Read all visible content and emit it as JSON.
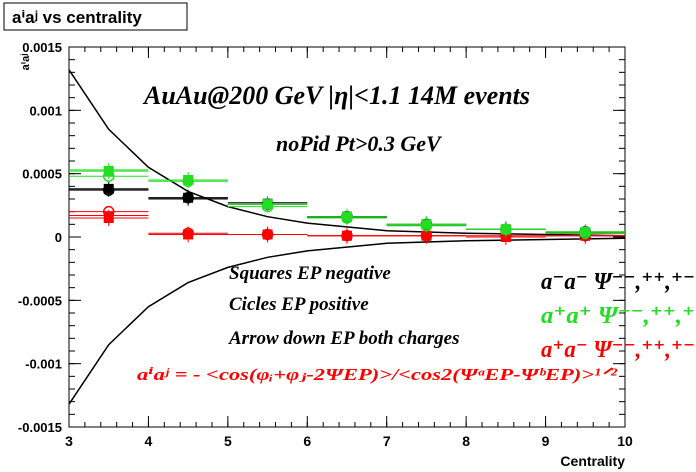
{
  "title": "aⁱaʲ vs centrality",
  "chart_data": {
    "type": "scatter",
    "title": "aⁱaʲ vs centrality",
    "xlabel": "Centrality",
    "ylabel": "aⁱaʲ",
    "xlim": [
      3,
      10
    ],
    "ylim": [
      -0.0015,
      0.0015
    ],
    "x_ticks": [
      3,
      4,
      5,
      6,
      7,
      8,
      9,
      10
    ],
    "x_tick_labels": [
      "3",
      "4",
      "5",
      "6",
      "7",
      "8",
      "9",
      "10"
    ],
    "y_ticks": [
      -0.0015,
      -0.001,
      -0.0005,
      0,
      0.0005,
      0.001,
      0.0015
    ],
    "y_tick_labels": [
      "-0.0015",
      "-0.001",
      "-0.0005",
      "0",
      "0.0005",
      "0.001",
      "0.0015"
    ],
    "grid": false,
    "annotations": {
      "header1": "AuAu@200 GeV |η|<1.1 14M events",
      "header2": "noPid Pt>0.3 GeV",
      "note_squares": "Squares EP negative",
      "note_circles": "Cicles EP positive",
      "note_arrows": "Arrow down EP both charges",
      "formula": "aⁱaʲ = - <cos(φᵢ+φⱼ-2ΨEP)>/<cos2(ΨᵃEP-ΨᵇEP)>¹ᐟ²"
    },
    "legend": {
      "position": "right",
      "entries": [
        {
          "label": "a⁻a⁻  Ψ⁻⁻,⁺⁺,⁺⁻",
          "color": "#000000"
        },
        {
          "label": "a⁺a⁺  Ψ⁻⁻,⁺⁺,⁺",
          "color": "#22dd22"
        },
        {
          "label": "a⁺a⁻  Ψ⁻⁻,⁺⁺,⁺⁻",
          "color": "#ff0000"
        }
      ]
    },
    "series": [
      {
        "name": "a⁻a⁻",
        "color": "#000000",
        "x": [
          3.5,
          4.5,
          5.5,
          6.5,
          7.5,
          8.5,
          9.5
        ],
        "y": [
          0.00038,
          0.0003,
          0.00027,
          0.00016,
          9e-05,
          6e-05,
          3e-05
        ],
        "squares_y": [
          0.00038,
          0.00031,
          0.00026,
          0.00016,
          0.0001,
          6e-05,
          3e-05
        ],
        "circles_y": [
          0.00037,
          0.00031,
          0.00026,
          0.00016,
          0.0001,
          6e-05,
          4e-05
        ]
      },
      {
        "name": "a⁺a⁺",
        "color": "#22dd22",
        "x": [
          3.5,
          4.5,
          5.5,
          6.5,
          7.5,
          8.5,
          9.5
        ],
        "y": [
          0.00053,
          0.00045,
          0.00026,
          0.00015,
          0.0001,
          6e-05,
          3e-05
        ],
        "squares_y": [
          0.00052,
          0.00045,
          0.00026,
          0.00016,
          0.0001,
          6e-05,
          4e-05
        ],
        "circles_y": [
          0.00048,
          0.00044,
          0.00024,
          0.00015,
          9e-05,
          6e-05,
          3e-05
        ]
      },
      {
        "name": "a⁺a⁻",
        "color": "#ff0000",
        "x": [
          3.5,
          4.5,
          5.5,
          6.5,
          7.5,
          8.5,
          9.5
        ],
        "y": [
          0.00017,
          2e-05,
          2e-05,
          1e-05,
          1e-05,
          0.0,
          1e-05
        ],
        "squares_y": [
          0.00015,
          2e-05,
          2e-05,
          1e-05,
          1e-05,
          0.0,
          1e-05
        ],
        "circles_y": [
          0.0002,
          3e-05,
          2e-05,
          1e-05,
          1e-05,
          1e-05,
          1e-05
        ]
      }
    ],
    "curves": {
      "upper": {
        "x": [
          3.0,
          3.5,
          4.0,
          4.5,
          5.0,
          5.5,
          6.0,
          7.0,
          8.0,
          9.0,
          10.0
        ],
        "y": [
          0.00132,
          0.00085,
          0.00055,
          0.00036,
          0.00024,
          0.00016,
          0.00011,
          5e-05,
          3e-05,
          2e-05,
          1e-05
        ]
      },
      "lower": {
        "x": [
          3.0,
          3.5,
          4.0,
          4.5,
          5.0,
          5.5,
          6.0,
          7.0,
          8.0,
          9.0,
          10.0
        ],
        "y": [
          -0.00132,
          -0.00085,
          -0.00055,
          -0.00036,
          -0.00024,
          -0.00016,
          -0.00011,
          -5e-05,
          -3e-05,
          -2e-05,
          -1e-05
        ]
      }
    }
  }
}
